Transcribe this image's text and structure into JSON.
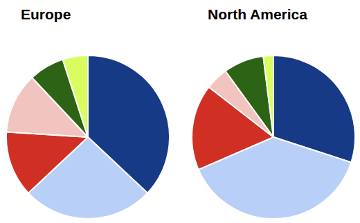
{
  "chart_data": [
    {
      "type": "pie",
      "title": "Europe",
      "values": [
        37,
        26,
        13,
        12,
        7,
        5
      ],
      "colors": [
        "#173a86",
        "#b8cff8",
        "#d03024",
        "#f2c4c0",
        "#2d6314",
        "#d9fd60"
      ]
    },
    {
      "type": "pie",
      "title": "North America",
      "values": [
        30,
        38.5,
        17,
        4.5,
        8,
        2
      ],
      "colors": [
        "#173a86",
        "#b8cff8",
        "#d03024",
        "#f2c4c0",
        "#2d6314",
        "#d9fd60"
      ]
    }
  ]
}
